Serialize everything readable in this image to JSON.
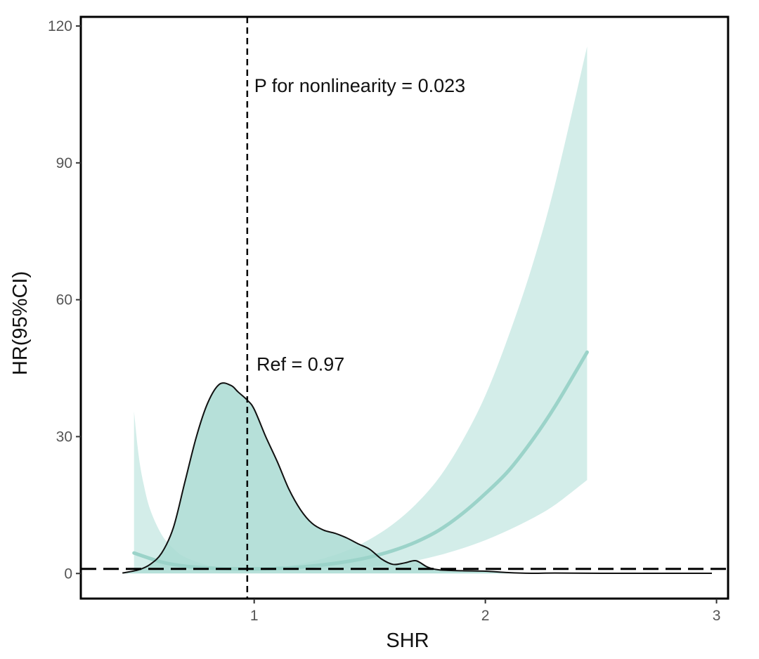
{
  "chart_data": {
    "type": "line",
    "title": "",
    "xlabel": "SHR",
    "ylabel": "HR(95%CI)",
    "xlim": [
      0.25,
      3.05
    ],
    "ylim": [
      -5.5,
      122
    ],
    "grid": false,
    "x_ticks": [
      1,
      2,
      3
    ],
    "y_ticks": [
      0,
      30,
      60,
      90,
      120
    ],
    "x_tick_labels": [
      "1",
      "2",
      "3"
    ],
    "y_tick_labels": [
      "0",
      "30",
      "60",
      "90",
      "120"
    ],
    "reference_hline": 1,
    "reference_vline": 0.97,
    "annotations": [
      {
        "text": "P for nonlinearity = 0.023",
        "x": 1.0,
        "y": 105.5
      },
      {
        "text": "Ref = 0.97",
        "x": 1.01,
        "y": 44.5
      }
    ],
    "colors": {
      "hr_line": "#9bd3c9",
      "ci_band": "#d3ede9",
      "density_fill": "#a9dbd2",
      "density_line": "#111111",
      "frame": "#000000"
    },
    "series": [
      {
        "name": "HR",
        "x": [
          0.48,
          0.6,
          0.7,
          0.8,
          0.9,
          0.97,
          1.1,
          1.2,
          1.3,
          1.4,
          1.5,
          1.6,
          1.7,
          1.8,
          1.9,
          2.0,
          2.1,
          2.2,
          2.3,
          2.44
        ],
        "y": [
          4.5,
          2.5,
          1.6,
          1.2,
          1.03,
          1.0,
          1.1,
          1.4,
          1.9,
          2.6,
          3.6,
          5.0,
          6.9,
          9.5,
          13.1,
          17.5,
          22.5,
          29.0,
          36.5,
          48.5
        ]
      },
      {
        "name": "95% CI lower",
        "x": [
          0.48,
          0.6,
          0.7,
          0.8,
          0.9,
          0.97,
          1.1,
          1.2,
          1.3,
          1.4,
          1.5,
          1.6,
          1.7,
          1.8,
          1.9,
          2.0,
          2.1,
          2.2,
          2.3,
          2.44
        ],
        "y": [
          0.6,
          0.8,
          0.9,
          0.95,
          0.98,
          1.0,
          0.95,
          0.9,
          0.95,
          1.1,
          1.4,
          2.0,
          2.8,
          4.0,
          5.5,
          7.3,
          9.5,
          12.0,
          15.0,
          20.5
        ]
      },
      {
        "name": "95% CI upper",
        "x": [
          0.48,
          0.5,
          0.52,
          0.55,
          0.6,
          0.65,
          0.7,
          0.8,
          0.9,
          0.97,
          1.1,
          1.2,
          1.3,
          1.4,
          1.5,
          1.6,
          1.7,
          1.8,
          1.9,
          2.0,
          2.1,
          2.2,
          2.3,
          2.44
        ],
        "y": [
          35.5,
          26,
          20,
          14,
          8.5,
          5.5,
          3.6,
          1.8,
          1.15,
          1.0,
          1.3,
          2.1,
          3.3,
          5.0,
          7.5,
          10.8,
          15.2,
          21,
          29,
          39,
          52,
          67,
          85,
          115.5
        ]
      },
      {
        "name": "SHR density",
        "x": [
          0.43,
          0.5,
          0.55,
          0.6,
          0.65,
          0.7,
          0.75,
          0.8,
          0.85,
          0.9,
          0.93,
          0.97,
          1.0,
          1.05,
          1.1,
          1.15,
          1.2,
          1.25,
          1.3,
          1.35,
          1.4,
          1.45,
          1.5,
          1.55,
          1.6,
          1.65,
          1.7,
          1.75,
          1.8,
          1.9,
          2.0,
          2.1,
          2.2,
          2.3,
          2.5,
          2.7,
          2.9,
          2.98
        ],
        "y": [
          0.1,
          0.8,
          2,
          4.5,
          10,
          20,
          30,
          37.5,
          41.5,
          41.2,
          39.8,
          38,
          36,
          30,
          24.5,
          18.5,
          14,
          11,
          9.5,
          8.8,
          7.8,
          6.5,
          5.3,
          3.2,
          2.0,
          2.3,
          2.8,
          1.4,
          0.8,
          0.6,
          0.5,
          0.2,
          0.05,
          0.1,
          0.05,
          0.05,
          0.05,
          0.05
        ]
      }
    ]
  }
}
